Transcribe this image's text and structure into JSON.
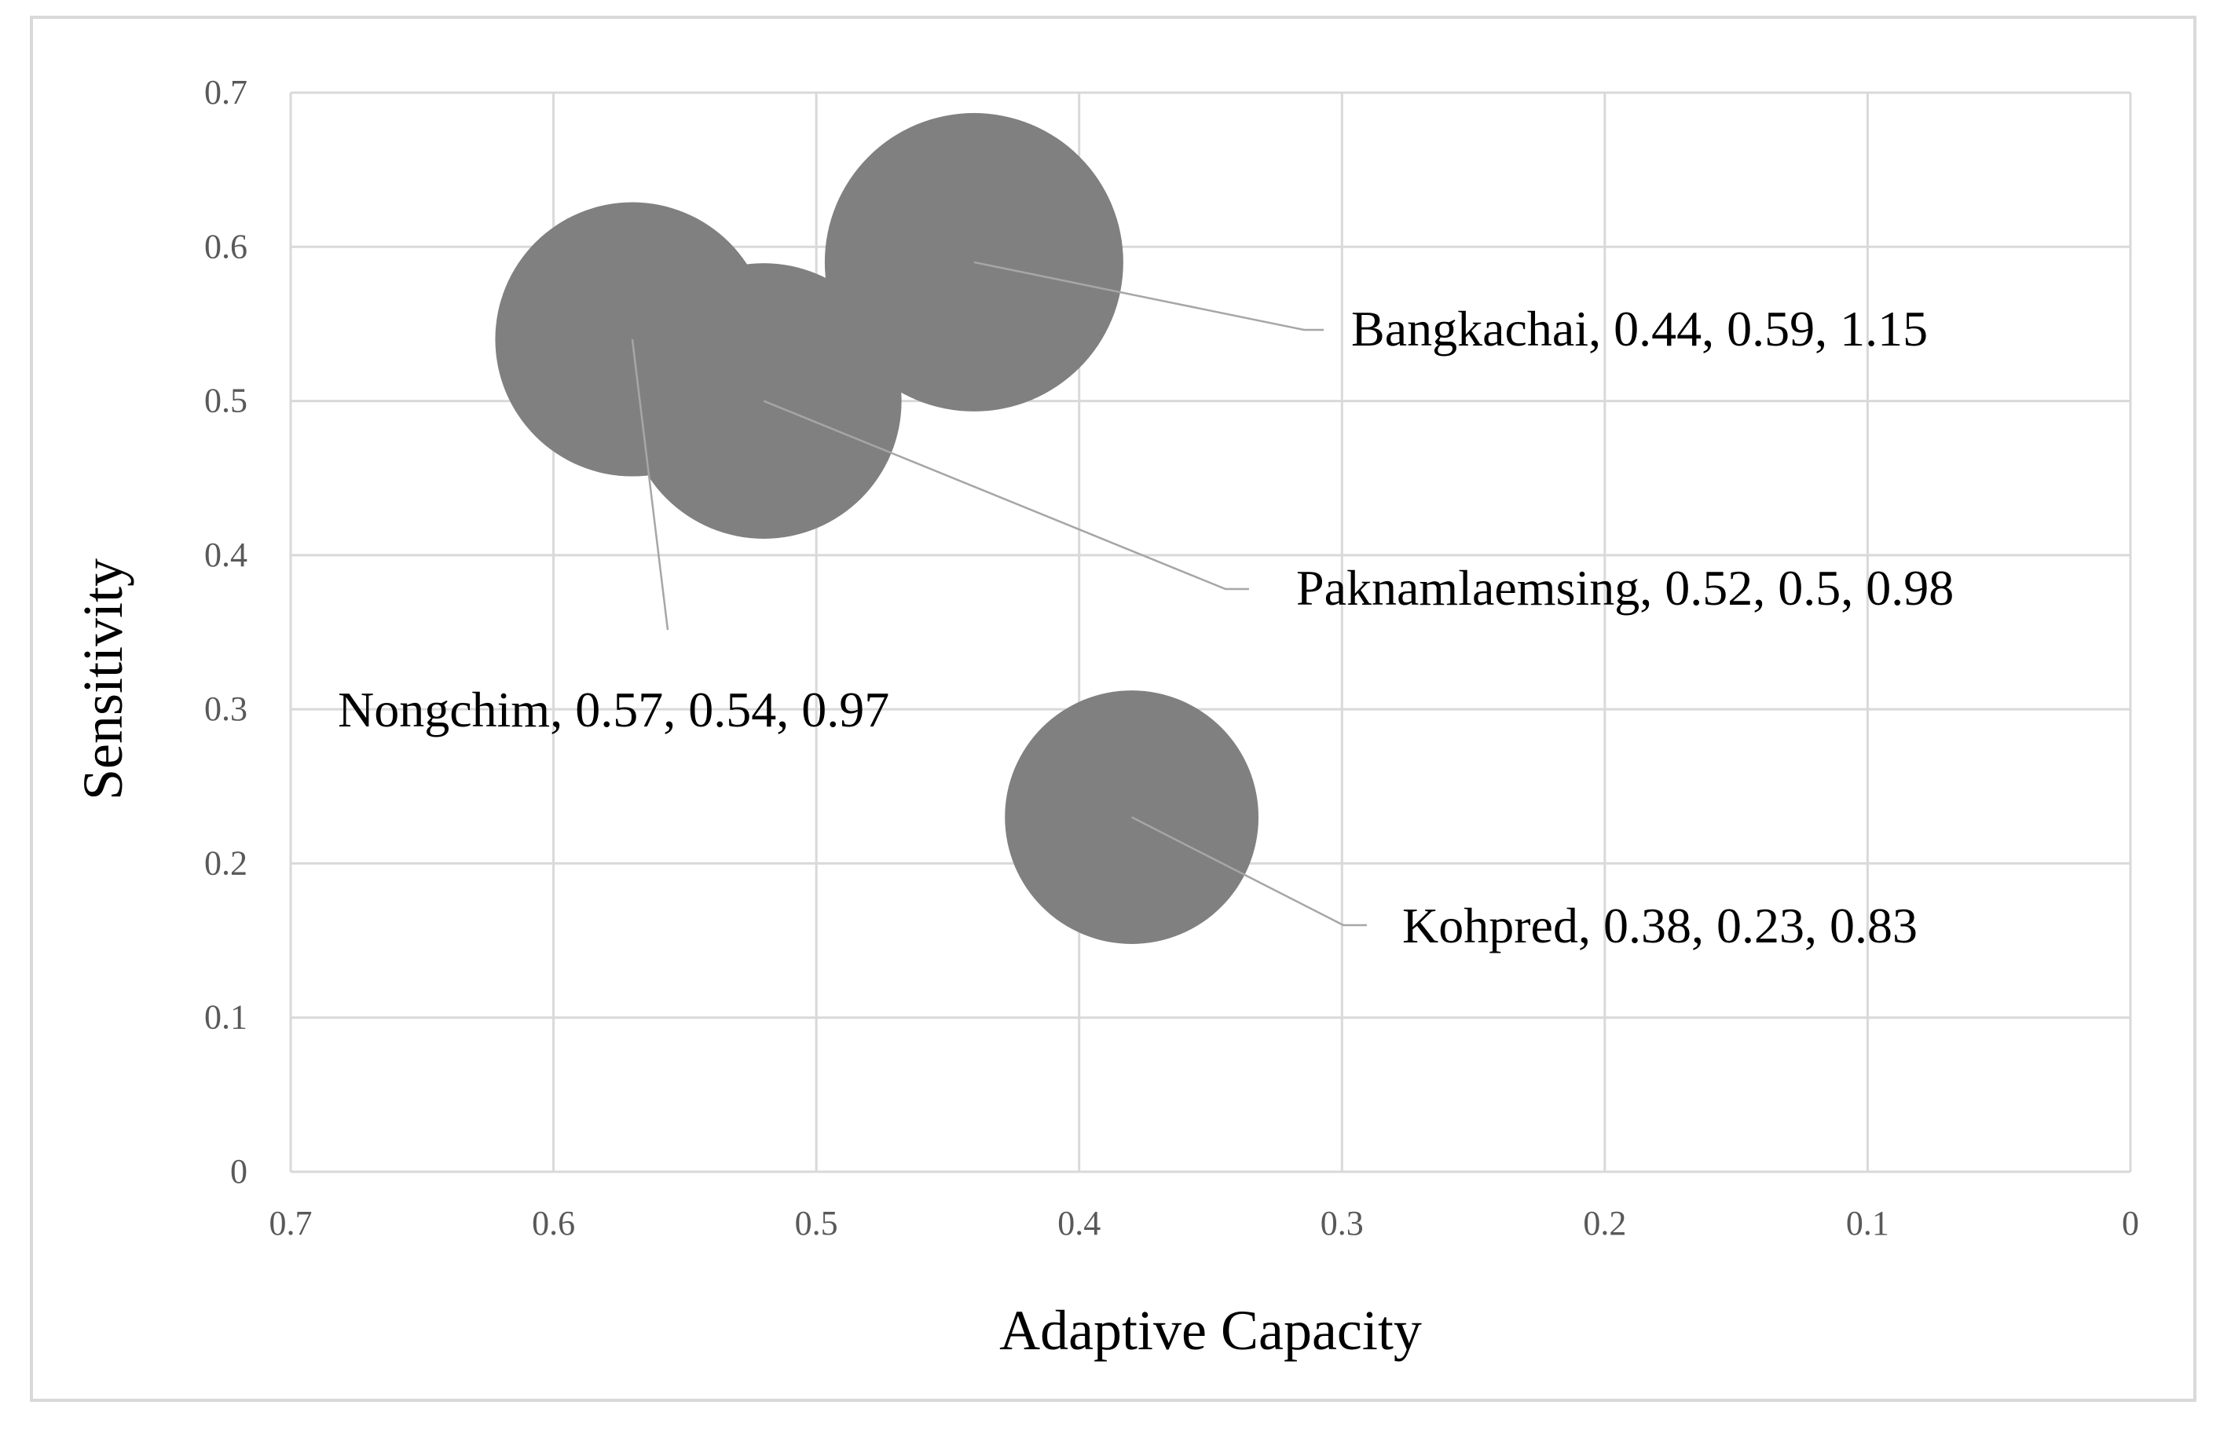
{
  "chart_data": {
    "type": "bubble",
    "title": "",
    "xlabel": "Adaptive Capacity",
    "ylabel": "Sensitivity",
    "xlim": [
      0,
      0.7
    ],
    "ylim": [
      0,
      0.7
    ],
    "x_reversed": true,
    "grid": true,
    "x_ticks": [
      "0.7",
      "0.6",
      "0.5",
      "0.4",
      "0.3",
      "0.2",
      "0.1",
      "0"
    ],
    "x_tick_values": [
      0.7,
      0.6,
      0.5,
      0.4,
      0.3,
      0.2,
      0.1,
      0
    ],
    "y_ticks": [
      "0",
      "0.1",
      "0.2",
      "0.3",
      "0.4",
      "0.5",
      "0.6",
      "0.7"
    ],
    "y_tick_values": [
      0,
      0.1,
      0.2,
      0.3,
      0.4,
      0.5,
      0.6,
      0.7
    ],
    "bubble_color": "#808080",
    "points": [
      {
        "name": "Nongchim",
        "x": 0.57,
        "y": 0.54,
        "size": 0.97,
        "label": "Nongchim, 0.57, 0.54, 0.97"
      },
      {
        "name": "Paknamlaemsing",
        "x": 0.52,
        "y": 0.5,
        "size": 0.98,
        "label": "Paknamlaemsing, 0.52, 0.5, 0.98"
      },
      {
        "name": "Bangkachai",
        "x": 0.44,
        "y": 0.59,
        "size": 1.15,
        "label": "Bangkachai, 0.44, 0.59, 1.15"
      },
      {
        "name": "Kohpred",
        "x": 0.38,
        "y": 0.23,
        "size": 0.83,
        "label": "Kohpred, 0.38, 0.23, 0.83"
      }
    ]
  }
}
